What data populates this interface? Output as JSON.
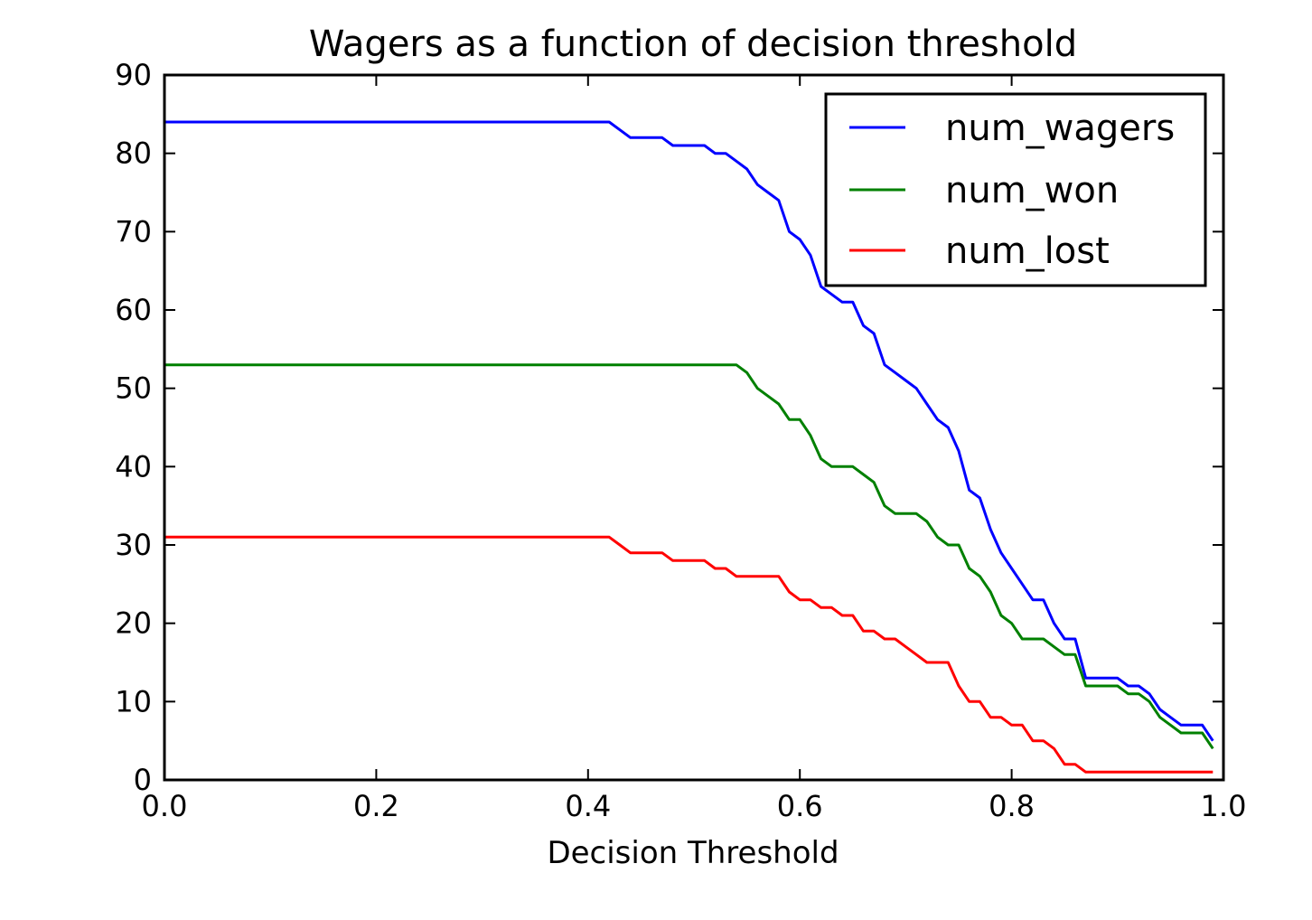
{
  "chart_data": {
    "type": "line",
    "title": "Wagers as a function of decision threshold",
    "xlabel": "Decision Threshold",
    "ylabel": "",
    "xlim": [
      0.0,
      1.0
    ],
    "ylim": [
      0,
      90
    ],
    "xticks": [
      "0.0",
      "0.2",
      "0.4",
      "0.6",
      "0.8",
      "1.0"
    ],
    "yticks": [
      "0",
      "10",
      "20",
      "30",
      "40",
      "50",
      "60",
      "70",
      "80",
      "90"
    ],
    "grid": false,
    "legend": "top-right",
    "series": [
      {
        "name": "num_wagers",
        "color": "#0000ff",
        "x": [
          0.0,
          0.42,
          0.43,
          0.44,
          0.47,
          0.48,
          0.51,
          0.52,
          0.53,
          0.54,
          0.55,
          0.56,
          0.57,
          0.58,
          0.59,
          0.6,
          0.61,
          0.62,
          0.63,
          0.64,
          0.65,
          0.66,
          0.67,
          0.68,
          0.69,
          0.7,
          0.71,
          0.72,
          0.73,
          0.74,
          0.75,
          0.76,
          0.77,
          0.78,
          0.79,
          0.8,
          0.81,
          0.82,
          0.83,
          0.84,
          0.85,
          0.86,
          0.87,
          0.88,
          0.9,
          0.91,
          0.92,
          0.93,
          0.94,
          0.95,
          0.96,
          0.97,
          0.98,
          0.99
        ],
        "y": [
          84,
          84,
          83,
          82,
          82,
          81,
          81,
          80,
          80,
          79,
          78,
          76,
          75,
          74,
          70,
          69,
          67,
          63,
          62,
          61,
          61,
          58,
          57,
          53,
          52,
          51,
          50,
          48,
          46,
          45,
          42,
          37,
          36,
          32,
          29,
          27,
          25,
          23,
          23,
          20,
          18,
          18,
          13,
          13,
          13,
          12,
          12,
          11,
          9,
          8,
          7,
          7,
          7,
          5
        ]
      },
      {
        "name": "num_won",
        "color": "#008000",
        "x": [
          0.0,
          0.54,
          0.55,
          0.56,
          0.57,
          0.58,
          0.59,
          0.6,
          0.61,
          0.62,
          0.63,
          0.64,
          0.65,
          0.66,
          0.67,
          0.68,
          0.69,
          0.7,
          0.71,
          0.72,
          0.73,
          0.74,
          0.75,
          0.76,
          0.77,
          0.78,
          0.79,
          0.8,
          0.81,
          0.82,
          0.83,
          0.84,
          0.85,
          0.86,
          0.87,
          0.88,
          0.9,
          0.91,
          0.92,
          0.93,
          0.94,
          0.95,
          0.96,
          0.97,
          0.98,
          0.99
        ],
        "y": [
          53,
          53,
          52,
          50,
          49,
          48,
          46,
          46,
          44,
          41,
          40,
          40,
          40,
          39,
          38,
          35,
          34,
          34,
          34,
          33,
          31,
          30,
          30,
          27,
          26,
          24,
          21,
          20,
          18,
          18,
          18,
          17,
          16,
          16,
          12,
          12,
          12,
          11,
          11,
          10,
          8,
          7,
          6,
          6,
          6,
          4
        ]
      },
      {
        "name": "num_lost",
        "color": "#ff0000",
        "x": [
          0.0,
          0.42,
          0.43,
          0.44,
          0.47,
          0.48,
          0.51,
          0.52,
          0.53,
          0.54,
          0.55,
          0.56,
          0.57,
          0.58,
          0.59,
          0.6,
          0.61,
          0.62,
          0.63,
          0.64,
          0.65,
          0.66,
          0.67,
          0.68,
          0.69,
          0.7,
          0.71,
          0.72,
          0.73,
          0.74,
          0.75,
          0.76,
          0.77,
          0.78,
          0.79,
          0.8,
          0.81,
          0.82,
          0.83,
          0.84,
          0.85,
          0.86,
          0.87,
          0.88,
          0.9,
          0.92,
          0.94,
          0.96,
          0.98,
          0.99
        ],
        "y": [
          31,
          31,
          30,
          29,
          29,
          28,
          28,
          27,
          27,
          26,
          26,
          26,
          26,
          26,
          24,
          23,
          23,
          22,
          22,
          21,
          21,
          19,
          19,
          18,
          18,
          17,
          16,
          15,
          15,
          15,
          12,
          10,
          10,
          8,
          8,
          7,
          7,
          5,
          5,
          4,
          2,
          2,
          1,
          1,
          1,
          1,
          1,
          1,
          1,
          1
        ]
      }
    ]
  }
}
